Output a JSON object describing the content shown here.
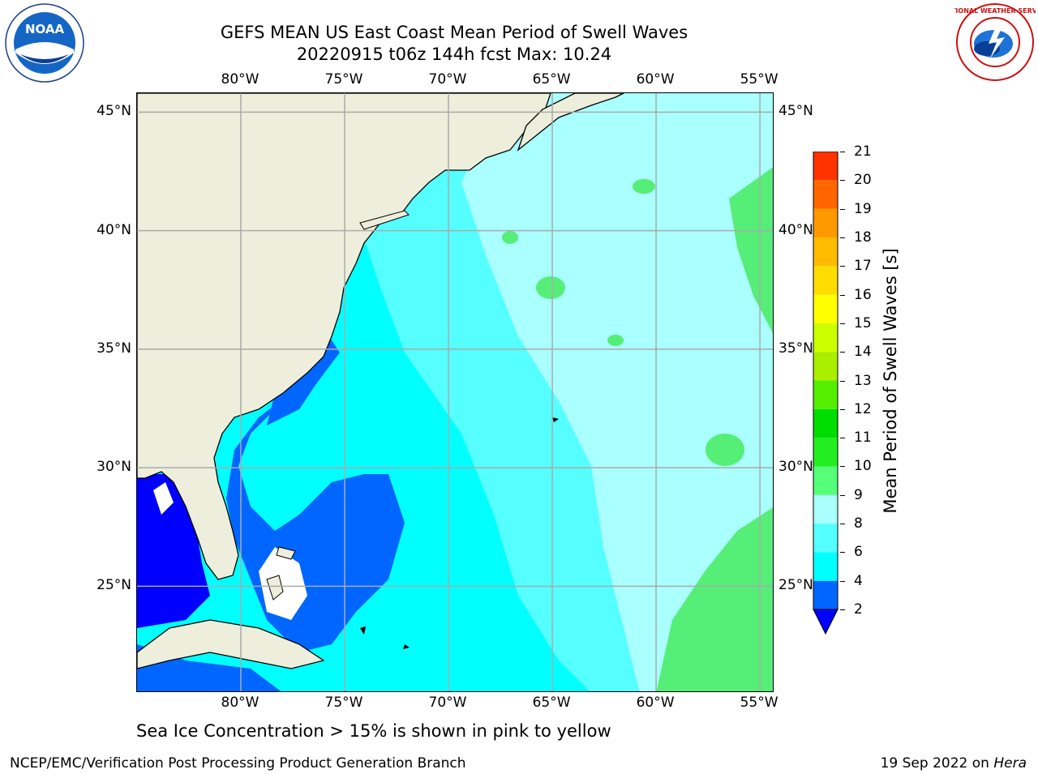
{
  "header": {
    "title_line1": "GEFS MEAN US East Coast Mean Period of Swell Waves",
    "title_line2": "20220915 t06z 144h fcst   Max: 10.24"
  },
  "logos": {
    "left": {
      "icon": "noaa-logo",
      "text": "NOAA"
    },
    "right": {
      "icon": "nws-logo",
      "text": "NATIONAL WEATHER SERVICE"
    }
  },
  "map": {
    "region": "US East Coast / Western Atlantic",
    "lon_range": [
      -85,
      -54.3
    ],
    "lat_range": [
      20.5,
      45.8
    ],
    "grid": true,
    "lon_ticks": [
      "80°W",
      "75°W",
      "70°W",
      "65°W",
      "60°W",
      "55°W"
    ],
    "lat_ticks": [
      "45°N",
      "40°N",
      "35°N",
      "30°N",
      "25°N"
    ],
    "land_color": "#eeeedd",
    "grid_color": "#aaaaaa"
  },
  "colorbar": {
    "title": "Mean Period of Swell Waves [s]",
    "labels": [
      "2",
      "4",
      "6",
      "8",
      "9",
      "10",
      "11",
      "12",
      "13",
      "14",
      "15",
      "16",
      "17",
      "18",
      "19",
      "20",
      "21"
    ],
    "colors": [
      "#0000ff",
      "#0066ff",
      "#00ffff",
      "#55ffff",
      "#aaffff",
      "#55ff77",
      "#22ee22",
      "#00dd00",
      "#55ee00",
      "#aaee00",
      "#ccff00",
      "#ffff00",
      "#ffdd00",
      "#ffbb00",
      "#ff9900",
      "#ff6600",
      "#ff3300",
      "#ff0000"
    ],
    "extend": "min"
  },
  "footer": {
    "note": "Sea Ice Concentration > 15% is shown in pink to yellow",
    "left": "NCEP/EMC/Verification Post Processing Product Generation Branch",
    "date": "19 Sep 2022 on ",
    "host": "Hera"
  }
}
